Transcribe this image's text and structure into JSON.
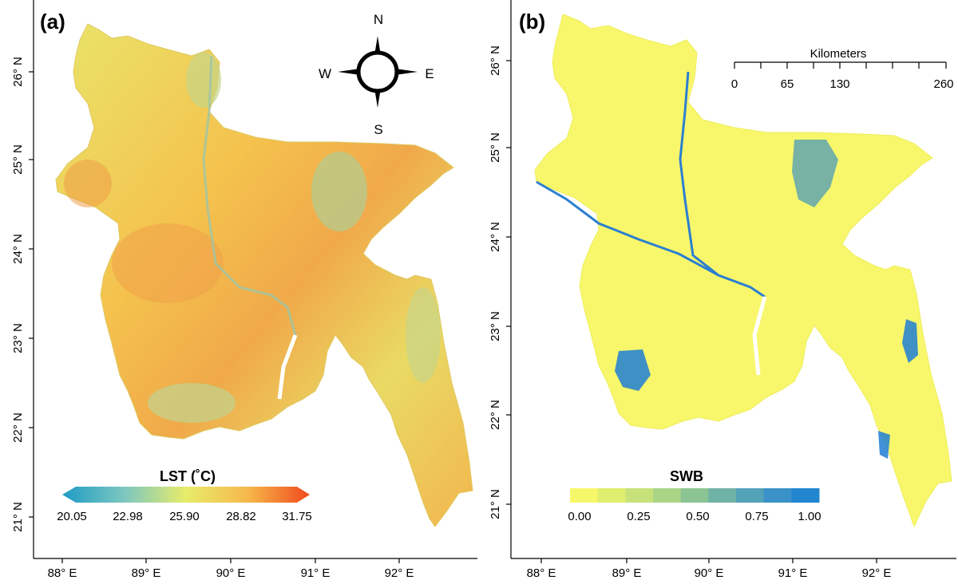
{
  "panels": [
    {
      "label": "(a)",
      "lat_ticks": [
        "26° N",
        "25° N",
        "24° N",
        "23° N",
        "22° N",
        "21° N"
      ],
      "lon_ticks": [
        "88° E",
        "89° E",
        "90° E",
        "91° E",
        "92° E"
      ],
      "compass": {
        "n": "N",
        "s": "S",
        "e": "E",
        "w": "W"
      },
      "legend": {
        "title": "LST (˚C)",
        "values": [
          "20.05",
          "22.98",
          "25.90",
          "28.82",
          "31.75"
        ],
        "colors": [
          "#1e9bc4",
          "#7cc7c0",
          "#e8ec6a",
          "#f6b84a",
          "#f04a1e"
        ]
      }
    },
    {
      "label": "(b)",
      "lat_ticks": [
        "26° N",
        "25° N",
        "24° N",
        "23° N",
        "22° N",
        "21° N"
      ],
      "lon_ticks": [
        "88° E",
        "89° E",
        "90° E",
        "91° E",
        "92° E"
      ],
      "scalebar": {
        "title": "Kilometers",
        "values": [
          "0",
          "65",
          "130",
          "260"
        ]
      },
      "legend": {
        "title": "SWB",
        "values": [
          "0.00",
          "0.25",
          "0.50",
          "0.75",
          "1.00"
        ],
        "colors": [
          "#f7f76a",
          "#e0ee70",
          "#c7e27a",
          "#aad486",
          "#8cc494",
          "#6fb3a6",
          "#52a2b8",
          "#3a92c8",
          "#2285d0"
        ]
      }
    }
  ]
}
